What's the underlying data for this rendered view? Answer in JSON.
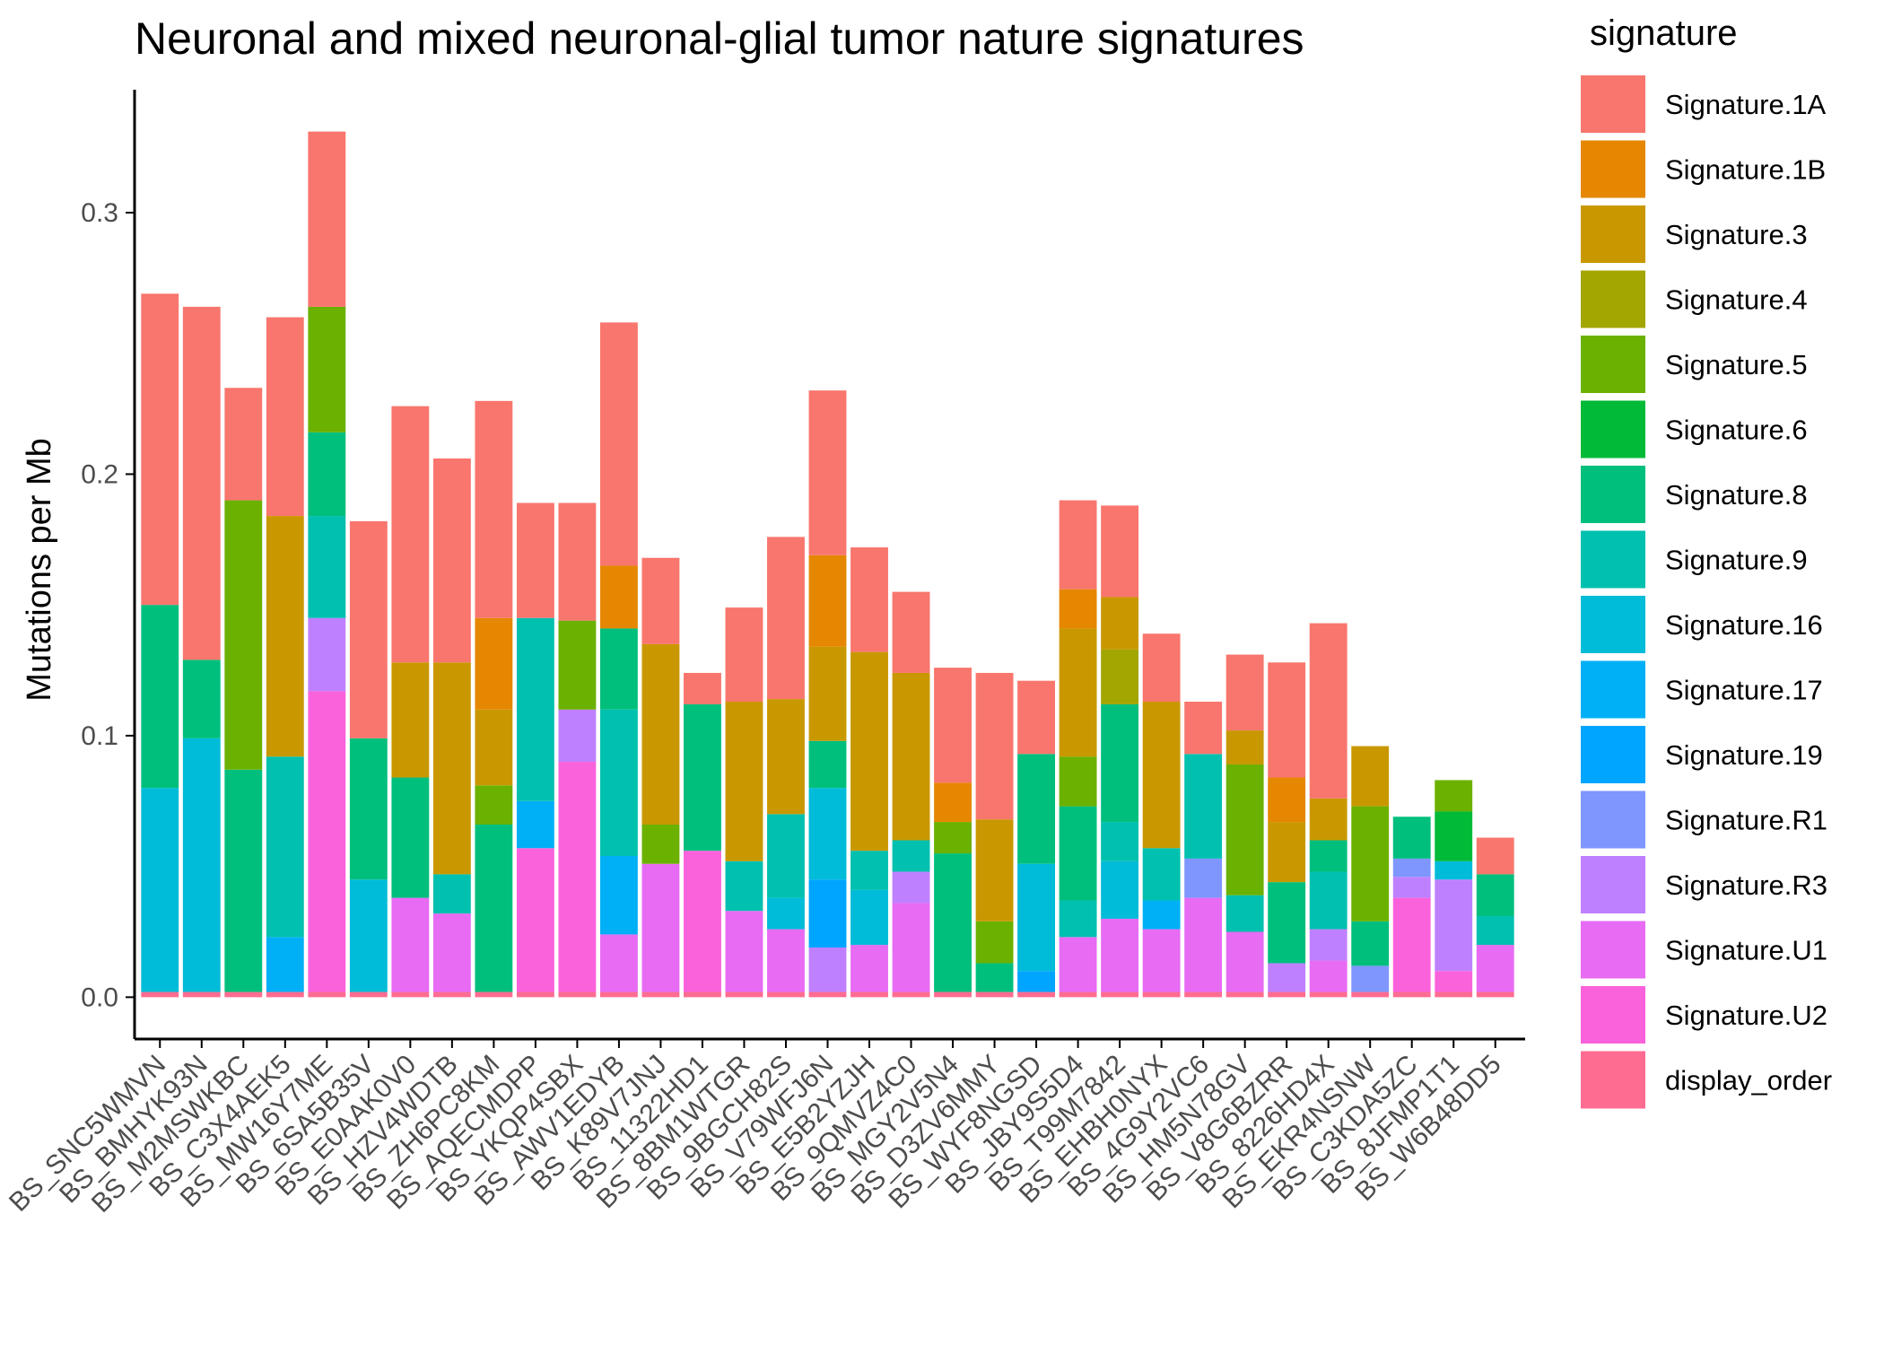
{
  "chart_data": {
    "type": "bar",
    "stacked": true,
    "title": "Neuronal and mixed neuronal-glial tumor nature signatures",
    "xlabel": "",
    "ylabel": "Mutations per Mb",
    "ylim": [
      -0.016,
      0.347
    ],
    "yticks": [
      0.0,
      0.1,
      0.2,
      0.3
    ],
    "ytick_labels": [
      "0.0",
      "0.1",
      "0.2",
      "0.3"
    ],
    "grid": false,
    "legend": {
      "title": "signature",
      "placement": "right",
      "entries": [
        {
          "label": "Signature.1A",
          "color": "#F8766D"
        },
        {
          "label": "Signature.1B",
          "color": "#E58700"
        },
        {
          "label": "Signature.3",
          "color": "#C99800"
        },
        {
          "label": "Signature.4",
          "color": "#A3A500"
        },
        {
          "label": "Signature.5",
          "color": "#6BB100"
        },
        {
          "label": "Signature.6",
          "color": "#00BA38"
        },
        {
          "label": "Signature.8",
          "color": "#00BF7D"
        },
        {
          "label": "Signature.9",
          "color": "#00C0AF"
        },
        {
          "label": "Signature.16",
          "color": "#00BCD8"
        },
        {
          "label": "Signature.17",
          "color": "#00B0F6"
        },
        {
          "label": "Signature.19",
          "color": "#00A5FF"
        },
        {
          "label": "Signature.R1",
          "color": "#7F96FF"
        },
        {
          "label": "Signature.R3",
          "color": "#BF80FF"
        },
        {
          "label": "Signature.U1",
          "color": "#E76BF3"
        },
        {
          "label": "Signature.U2",
          "color": "#FA62DB"
        },
        {
          "label": "display_order",
          "color": "#FF6C91"
        }
      ]
    },
    "categories": [
      "BS_SNC5WMVN",
      "BS_BMHYK93N",
      "BS_M2MSWKBC",
      "BS_C3X4AEK5",
      "BS_MW16Y7ME",
      "BS_6SA5B35V",
      "BS_E0AAK0V0",
      "BS_HZV4WDTB",
      "BS_ZH6PC8KM",
      "BS_AQECMDPP",
      "BS_YKQP4SBX",
      "BS_AWV1EDYB",
      "BS_K89V7JNJ",
      "BS_11322HD1",
      "BS_8BM1WTGR",
      "BS_9BGCH82S",
      "BS_V79WFJ6N",
      "BS_E5B2YZJH",
      "BS_9QMVZ4C0",
      "BS_MGY2V5N4",
      "BS_D3ZV6MMY",
      "BS_WYF8NGSD",
      "BS_JBY9S5D4",
      "BS_T99M7842",
      "BS_EHBH0NYX",
      "BS_4G9Y2VC6",
      "BS_HM5N78GV",
      "BS_V8G6BZRR",
      "BS_8226HD4X",
      "BS_EKR4NSNW",
      "BS_C3KDA5ZC",
      "BS_8JFMP1T1",
      "BS_W6B48DD5"
    ],
    "series": [
      {
        "name": "display_order",
        "color": "#FF6C91",
        "values": [
          0.002,
          0.002,
          0.002,
          0.002,
          0.002,
          0.002,
          0.002,
          0.002,
          0.002,
          0.002,
          0.002,
          0.002,
          0.002,
          0.002,
          0.002,
          0.002,
          0.002,
          0.002,
          0.002,
          0.002,
          0.002,
          0.002,
          0.002,
          0.002,
          0.002,
          0.002,
          0.002,
          0.002,
          0.002,
          0.002,
          0.002,
          0.002,
          0.002
        ]
      },
      {
        "name": "Signature.U2",
        "color": "#FA62DB",
        "values": [
          0,
          0,
          0,
          0,
          0.115,
          0,
          0,
          0,
          0,
          0.055,
          0.088,
          0,
          0,
          0.054,
          0,
          0,
          0,
          0,
          0,
          0,
          0,
          0,
          0,
          0,
          0,
          0,
          0,
          0,
          0,
          0,
          0.036,
          0.008,
          0
        ]
      },
      {
        "name": "Signature.U1",
        "color": "#E76BF3",
        "values": [
          0,
          0,
          0,
          0,
          0,
          0,
          0.036,
          0.03,
          0,
          0,
          0,
          0.022,
          0.049,
          0,
          0.031,
          0.024,
          0,
          0.018,
          0.034,
          0,
          0,
          0,
          0.021,
          0.028,
          0.024,
          0.036,
          0.023,
          0,
          0.012,
          0,
          0,
          0,
          0.018
        ]
      },
      {
        "name": "Signature.R3",
        "color": "#BF80FF",
        "values": [
          0,
          0,
          0,
          0,
          0.028,
          0,
          0,
          0,
          0,
          0,
          0.02,
          0,
          0,
          0,
          0,
          0,
          0.017,
          0,
          0.012,
          0,
          0,
          0,
          0,
          0,
          0,
          0,
          0,
          0.011,
          0.012,
          0,
          0.008,
          0.035,
          0
        ]
      },
      {
        "name": "Signature.R1",
        "color": "#7F96FF",
        "values": [
          0,
          0,
          0,
          0,
          0,
          0,
          0,
          0,
          0,
          0,
          0,
          0,
          0,
          0,
          0,
          0,
          0,
          0,
          0,
          0,
          0,
          0,
          0,
          0,
          0,
          0.015,
          0,
          0,
          0,
          0.01,
          0.007,
          0,
          0
        ]
      },
      {
        "name": "Signature.19",
        "color": "#00A5FF",
        "values": [
          0,
          0,
          0,
          0,
          0,
          0,
          0,
          0,
          0,
          0,
          0,
          0,
          0,
          0,
          0,
          0,
          0.026,
          0,
          0,
          0,
          0,
          0.008,
          0,
          0,
          0,
          0,
          0,
          0,
          0,
          0,
          0,
          0,
          0
        ]
      },
      {
        "name": "Signature.17",
        "color": "#00B0F6",
        "values": [
          0,
          0,
          0,
          0.021,
          0,
          0,
          0,
          0,
          0,
          0.018,
          0,
          0.03,
          0,
          0,
          0,
          0,
          0,
          0,
          0,
          0,
          0,
          0,
          0,
          0,
          0.011,
          0,
          0,
          0,
          0,
          0,
          0,
          0,
          0
        ]
      },
      {
        "name": "Signature.16",
        "color": "#00BCD8",
        "values": [
          0.078,
          0.097,
          0,
          0,
          0,
          0.043,
          0,
          0,
          0,
          0,
          0,
          0,
          0,
          0,
          0,
          0.012,
          0.035,
          0.021,
          0,
          0,
          0,
          0.041,
          0,
          0.022,
          0,
          0,
          0,
          0,
          0,
          0,
          0,
          0.007,
          0
        ]
      },
      {
        "name": "Signature.9",
        "color": "#00C0AF",
        "values": [
          0,
          0,
          0,
          0.069,
          0.039,
          0,
          0,
          0.015,
          0,
          0.07,
          0,
          0.056,
          0,
          0,
          0.019,
          0.032,
          0,
          0.015,
          0.012,
          0,
          0,
          0,
          0.014,
          0.015,
          0.02,
          0.04,
          0.014,
          0,
          0.022,
          0,
          0,
          0,
          0.011
        ]
      },
      {
        "name": "Signature.8",
        "color": "#00BF7D",
        "values": [
          0.07,
          0.03,
          0.085,
          0,
          0.032,
          0.054,
          0.046,
          0,
          0.064,
          0,
          0,
          0.031,
          0,
          0.056,
          0,
          0,
          0.018,
          0,
          0,
          0.053,
          0.011,
          0.042,
          0.036,
          0.045,
          0,
          0,
          0,
          0.031,
          0.012,
          0.017,
          0.016,
          0,
          0.016
        ]
      },
      {
        "name": "Signature.6",
        "color": "#00BA38",
        "values": [
          0,
          0,
          0,
          0,
          0,
          0,
          0,
          0,
          0,
          0,
          0,
          0,
          0,
          0,
          0,
          0,
          0,
          0,
          0,
          0,
          0,
          0,
          0,
          0,
          0,
          0,
          0,
          0,
          0,
          0,
          0,
          0.019,
          0
        ]
      },
      {
        "name": "Signature.5",
        "color": "#6BB100",
        "values": [
          0,
          0,
          0.103,
          0,
          0.048,
          0,
          0,
          0,
          0.015,
          0,
          0.034,
          0,
          0.015,
          0,
          0,
          0,
          0,
          0,
          0,
          0.012,
          0.016,
          0,
          0.019,
          0,
          0,
          0,
          0.05,
          0,
          0,
          0.044,
          0,
          0.012,
          0
        ]
      },
      {
        "name": "Signature.4",
        "color": "#A3A500",
        "values": [
          0,
          0,
          0,
          0,
          0,
          0,
          0,
          0,
          0,
          0,
          0,
          0,
          0,
          0,
          0,
          0,
          0,
          0,
          0,
          0,
          0,
          0,
          0,
          0.021,
          0,
          0,
          0,
          0,
          0,
          0,
          0,
          0,
          0
        ]
      },
      {
        "name": "Signature.3",
        "color": "#C99800",
        "values": [
          0,
          0,
          0,
          0.092,
          0,
          0,
          0.044,
          0.081,
          0.029,
          0,
          0,
          0,
          0.069,
          0,
          0.061,
          0.044,
          0.036,
          0.076,
          0.064,
          0,
          0.039,
          0,
          0.049,
          0.02,
          0.056,
          0,
          0.013,
          0.023,
          0.016,
          0.023,
          0,
          0,
          0
        ]
      },
      {
        "name": "Signature.1B",
        "color": "#E58700",
        "values": [
          0,
          0,
          0,
          0,
          0,
          0,
          0,
          0,
          0.035,
          0,
          0,
          0.024,
          0,
          0,
          0,
          0,
          0.035,
          0,
          0,
          0.015,
          0,
          0,
          0.015,
          0,
          0,
          0,
          0,
          0.017,
          0,
          0,
          0,
          0,
          0
        ]
      },
      {
        "name": "Signature.1A",
        "color": "#F8766D",
        "values": [
          0.119,
          0.135,
          0.043,
          0.076,
          0.067,
          0.083,
          0.098,
          0.078,
          0.083,
          0.044,
          0.045,
          0.093,
          0.033,
          0.012,
          0.036,
          0.062,
          0.063,
          0.04,
          0.031,
          0.044,
          0.056,
          0.028,
          0.034,
          0.035,
          0.026,
          0.02,
          0.029,
          0.044,
          0.067,
          0,
          0,
          0,
          0.014
        ]
      }
    ]
  }
}
